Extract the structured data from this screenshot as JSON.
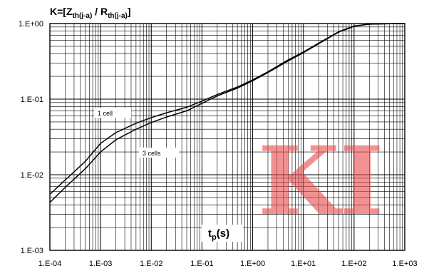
{
  "chart_data": {
    "type": "line",
    "title": "K=[Zth(j-a) / Rth(j-a)]",
    "title_parts": {
      "main1": "K=[Z",
      "sub1": "th(j-a)",
      "main2": " / R",
      "sub2": "th(j-a)",
      "main3": "]"
    },
    "xlabel": "tp(s)",
    "xlabel_parts": {
      "main": "t",
      "sub": "p",
      "rest": "(s)"
    },
    "ylabel": "",
    "x_scale": "log",
    "y_scale": "log",
    "xlim": [
      0.0001,
      1000
    ],
    "ylim": [
      0.001,
      1
    ],
    "grid": true,
    "x_tick_labels": [
      "1.E-04",
      "1.E-03",
      "1.E-02",
      "1.E-01",
      "1.E+00",
      "1.E+01",
      "1.E+02",
      "1.E+03"
    ],
    "y_tick_labels": [
      "1.E-03",
      "1.E-02",
      "1.E-01",
      "1.E+00"
    ],
    "series": [
      {
        "name": "1 cell",
        "x": [
          0.0001,
          0.0002,
          0.0005,
          0.001,
          0.002,
          0.005,
          0.01,
          0.02,
          0.05,
          0.1,
          0.2,
          0.5,
          1,
          2,
          5,
          10,
          20,
          50,
          100,
          200,
          500,
          1000
        ],
        "y": [
          0.0055,
          0.0085,
          0.015,
          0.026,
          0.036,
          0.048,
          0.057,
          0.066,
          0.078,
          0.094,
          0.115,
          0.145,
          0.18,
          0.23,
          0.33,
          0.42,
          0.55,
          0.78,
          0.93,
          0.98,
          0.995,
          1.0
        ]
      },
      {
        "name": "3 cells",
        "x": [
          0.0001,
          0.0002,
          0.0005,
          0.001,
          0.002,
          0.005,
          0.01,
          0.02,
          0.05,
          0.1,
          0.2,
          0.5,
          1,
          2,
          5,
          10,
          20,
          50,
          100,
          200,
          500,
          1000
        ],
        "y": [
          0.0043,
          0.0068,
          0.012,
          0.02,
          0.029,
          0.04,
          0.049,
          0.058,
          0.07,
          0.088,
          0.11,
          0.14,
          0.175,
          0.225,
          0.32,
          0.41,
          0.54,
          0.77,
          0.92,
          0.98,
          0.995,
          1.0
        ]
      }
    ]
  },
  "watermark": "KI"
}
